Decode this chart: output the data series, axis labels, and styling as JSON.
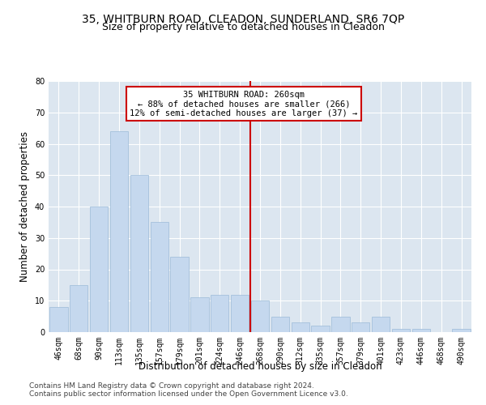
{
  "title1": "35, WHITBURN ROAD, CLEADON, SUNDERLAND, SR6 7QP",
  "title2": "Size of property relative to detached houses in Cleadon",
  "xlabel": "Distribution of detached houses by size in Cleadon",
  "ylabel": "Number of detached properties",
  "categories": [
    "46sqm",
    "68sqm",
    "90sqm",
    "113sqm",
    "135sqm",
    "157sqm",
    "179sqm",
    "201sqm",
    "224sqm",
    "246sqm",
    "268sqm",
    "290sqm",
    "312sqm",
    "335sqm",
    "357sqm",
    "379sqm",
    "401sqm",
    "423sqm",
    "446sqm",
    "468sqm",
    "490sqm"
  ],
  "values": [
    8,
    15,
    40,
    64,
    50,
    35,
    24,
    11,
    12,
    12,
    10,
    5,
    3,
    2,
    5,
    3,
    5,
    1,
    1,
    0,
    1
  ],
  "bar_color": "#c5d8ee",
  "bar_edgecolor": "#9bbbd8",
  "vline_x": 9.5,
  "vline_color": "#cc0000",
  "annotation_title": "35 WHITBURN ROAD: 260sqm",
  "annotation_line1": "← 88% of detached houses are smaller (266)",
  "annotation_line2": "12% of semi-detached houses are larger (37) →",
  "annotation_box_edgecolor": "#cc0000",
  "annotation_facecolor": "white",
  "ylim": [
    0,
    80
  ],
  "yticks": [
    0,
    10,
    20,
    30,
    40,
    50,
    60,
    70,
    80
  ],
  "background_color": "#dce6f0",
  "footer1": "Contains HM Land Registry data © Crown copyright and database right 2024.",
  "footer2": "Contains public sector information licensed under the Open Government Licence v3.0.",
  "title1_fontsize": 10,
  "title2_fontsize": 9,
  "xlabel_fontsize": 8.5,
  "ylabel_fontsize": 8.5,
  "tick_fontsize": 7,
  "footer_fontsize": 6.5,
  "ann_fontsize": 7.5
}
